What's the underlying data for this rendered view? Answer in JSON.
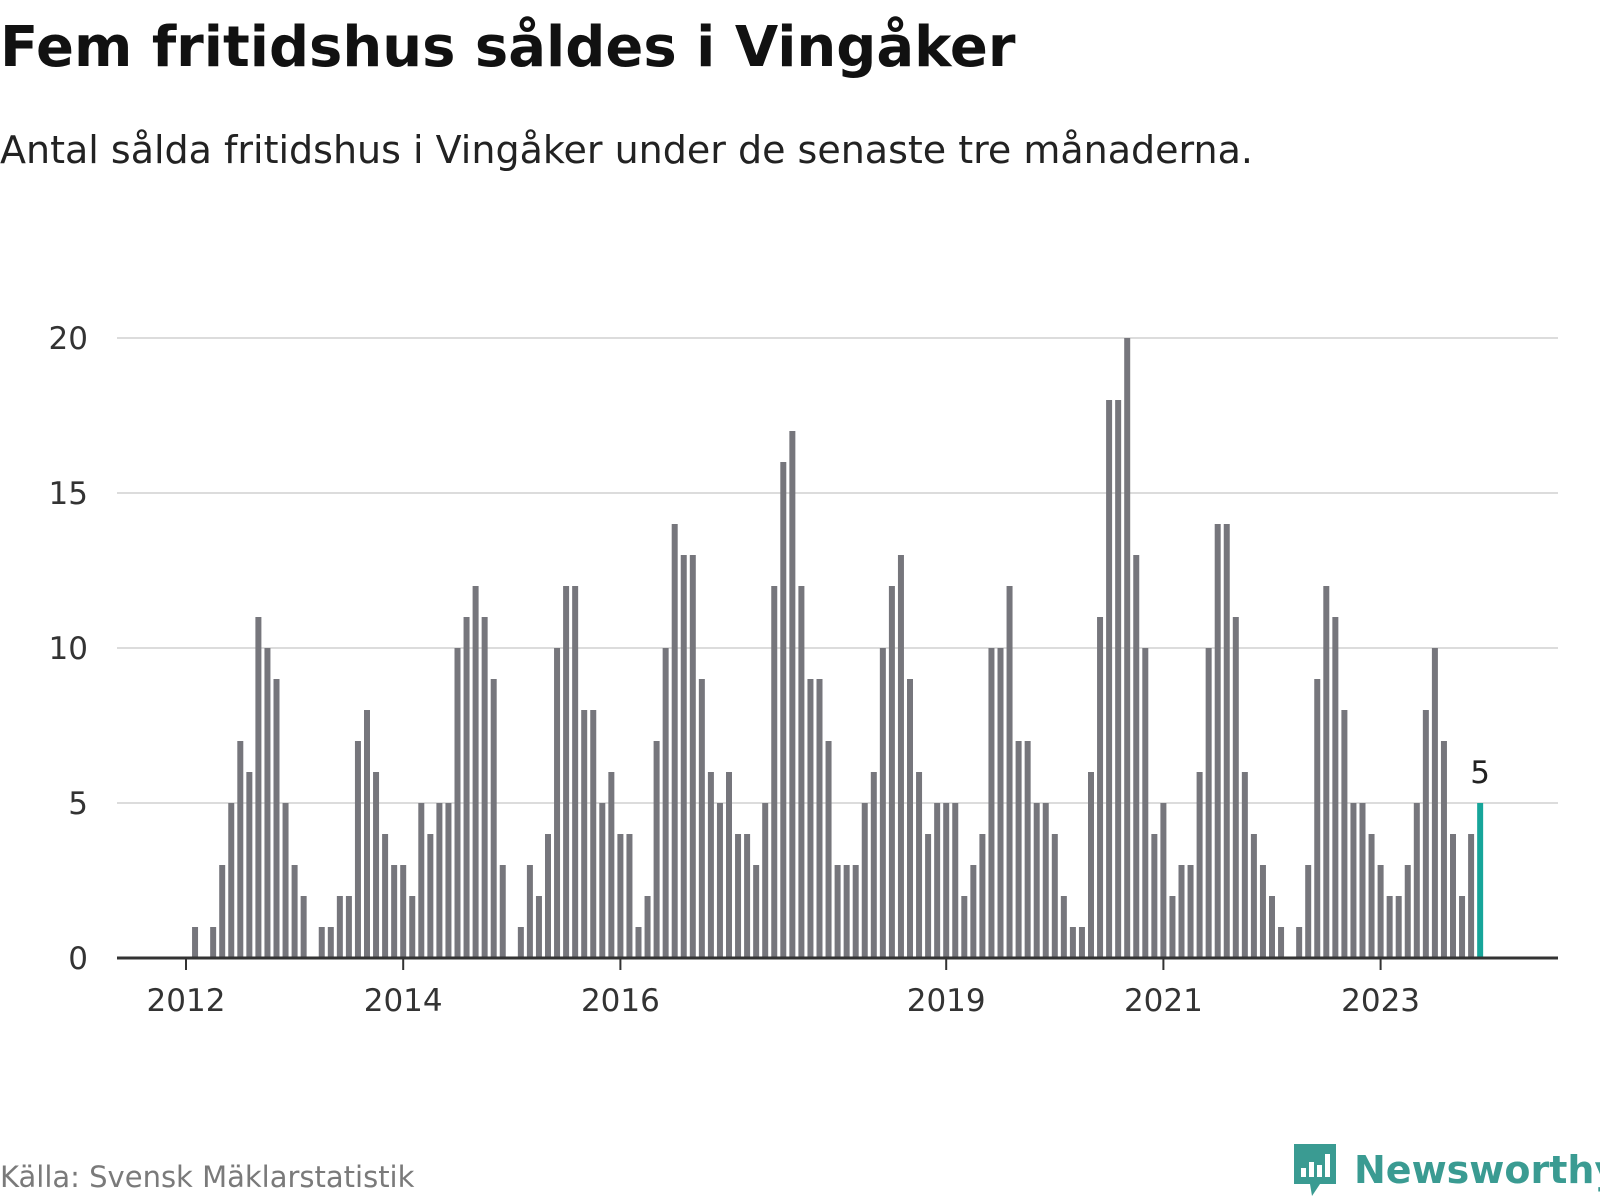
{
  "chart_data": {
    "type": "bar",
    "title": "Fem fritidshus såldes i Vingåker",
    "subtitle": "Antal sålda fritidshus i Vingåker under de senaste tre månaderna.",
    "xlabel": "",
    "ylabel": "",
    "ylim": [
      0,
      20
    ],
    "yticks": [
      "0",
      "5",
      "10",
      "15",
      "20"
    ],
    "grid": true,
    "legend": "none",
    "bar_color": "#76767c",
    "highlight_color": "#17a59a",
    "x_start": "2012-01",
    "xticks": [
      {
        "label": "2012",
        "date": "2012-01"
      },
      {
        "label": "2014",
        "date": "2014-01"
      },
      {
        "label": "2016",
        "date": "2016-01"
      },
      {
        "label": "2019",
        "date": "2019-01"
      },
      {
        "label": "2021",
        "date": "2021-01"
      },
      {
        "label": "2023",
        "date": "2023-01"
      }
    ],
    "values": [
      0,
      1,
      0,
      1,
      3,
      5,
      7,
      6,
      11,
      10,
      9,
      5,
      3,
      2,
      0,
      1,
      1,
      2,
      2,
      7,
      8,
      6,
      4,
      3,
      3,
      2,
      5,
      4,
      5,
      5,
      10,
      11,
      12,
      11,
      9,
      3,
      0,
      1,
      3,
      2,
      4,
      10,
      12,
      12,
      8,
      8,
      5,
      6,
      4,
      4,
      1,
      2,
      7,
      10,
      14,
      13,
      13,
      9,
      6,
      5,
      6,
      4,
      4,
      3,
      5,
      12,
      16,
      17,
      12,
      9,
      9,
      7,
      3,
      3,
      3,
      5,
      6,
      10,
      12,
      13,
      9,
      6,
      4,
      5,
      5,
      5,
      2,
      3,
      4,
      10,
      10,
      12,
      7,
      7,
      5,
      5,
      4,
      2,
      1,
      1,
      6,
      11,
      18,
      18,
      20,
      13,
      10,
      4,
      5,
      2,
      3,
      3,
      6,
      10,
      14,
      14,
      11,
      6,
      4,
      3,
      2,
      1,
      0,
      1,
      3,
      9,
      12,
      11,
      8,
      5,
      5,
      4,
      3,
      2,
      2,
      3,
      5,
      8,
      10,
      7,
      4,
      2,
      4,
      5
    ],
    "highlight_last": true,
    "annotation": {
      "text": "5"
    }
  },
  "source": "Källa: Svensk Mäklarstatistik",
  "brand": {
    "name": "Newsworthy",
    "color": "#3a9b92",
    "icon": "newsworthy-logo-icon"
  }
}
